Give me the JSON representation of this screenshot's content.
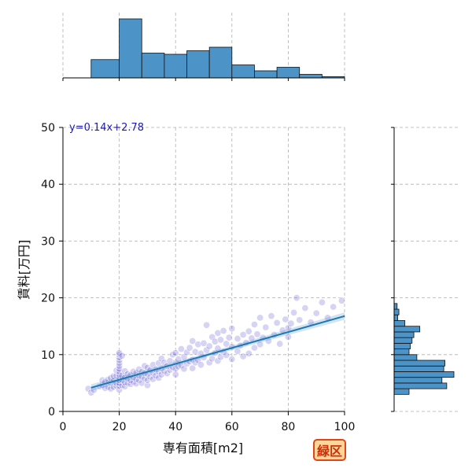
{
  "chart_data": {
    "type": "scatter",
    "xlabel": "専有面積[m2]",
    "ylabel": "賃料[万円]",
    "xlim": [
      0,
      100
    ],
    "ylim": [
      0,
      50
    ],
    "x_ticks": [
      "0",
      "20",
      "40",
      "60",
      "80",
      "100"
    ],
    "y_ticks": [
      "0",
      "10",
      "20",
      "30",
      "40",
      "50"
    ],
    "grid": true,
    "equation_label": "y=0.14x+2.78",
    "regression": {
      "slope": 0.14,
      "intercept": 2.78,
      "x_start": 10,
      "x_end": 100
    },
    "points_color": "#5a4fcf",
    "line_color": "#1f77b4",
    "hist_color": "#4c93c7",
    "top_histogram": {
      "bin_edges": [
        0,
        10,
        20,
        28,
        36,
        44,
        52,
        60,
        68,
        76,
        84,
        92,
        100
      ],
      "relative_heights": [
        0,
        0.31,
        1.0,
        0.42,
        0.4,
        0.46,
        0.52,
        0.22,
        0.12,
        0.18,
        0.06,
        0.02
      ]
    },
    "right_histogram": {
      "bin_edges_y": [
        3,
        4,
        5,
        6,
        7,
        8,
        9,
        10,
        11,
        12,
        13,
        14,
        15,
        16,
        17,
        18,
        19,
        20
      ],
      "relative_counts": [
        0.25,
        0.88,
        0.8,
        1.0,
        0.83,
        0.85,
        0.38,
        0.25,
        0.27,
        0.3,
        0.33,
        0.43,
        0.18,
        0.06,
        0.08,
        0.05,
        0
      ]
    },
    "points": [
      [
        9,
        4
      ],
      [
        10,
        3.3
      ],
      [
        11,
        3.8
      ],
      [
        13,
        4.4
      ],
      [
        14,
        4.6
      ],
      [
        14,
        5.5
      ],
      [
        15,
        4.1
      ],
      [
        15,
        5.2
      ],
      [
        16,
        4.3
      ],
      [
        16,
        5.6
      ],
      [
        17,
        4.0
      ],
      [
        17,
        5.0
      ],
      [
        17,
        5.9
      ],
      [
        18,
        4.3
      ],
      [
        18,
        5.4
      ],
      [
        18,
        6.2
      ],
      [
        19,
        4.5
      ],
      [
        19,
        5.0
      ],
      [
        19,
        6.3
      ],
      [
        19,
        7.2
      ],
      [
        20,
        3.8
      ],
      [
        20,
        4.5
      ],
      [
        20,
        5.0
      ],
      [
        20,
        5.5
      ],
      [
        20,
        6.0
      ],
      [
        20,
        6.5
      ],
      [
        20,
        7.0
      ],
      [
        20,
        7.5
      ],
      [
        20,
        8.0
      ],
      [
        20,
        8.5
      ],
      [
        20,
        9.0
      ],
      [
        20,
        9.5
      ],
      [
        20,
        10.0
      ],
      [
        20,
        10.3
      ],
      [
        21,
        4.6
      ],
      [
        21,
        5.5
      ],
      [
        21,
        6.3
      ],
      [
        21,
        9.8
      ],
      [
        22,
        4.4
      ],
      [
        22,
        5.1
      ],
      [
        22,
        6.0
      ],
      [
        22,
        7.1
      ],
      [
        23,
        5.0
      ],
      [
        23,
        5.8
      ],
      [
        23,
        6.6
      ],
      [
        24,
        4.8
      ],
      [
        24,
        5.5
      ],
      [
        24,
        6.4
      ],
      [
        25,
        5.2
      ],
      [
        25,
        6.0
      ],
      [
        25,
        7.0
      ],
      [
        26,
        4.9
      ],
      [
        26,
        5.7
      ],
      [
        26,
        6.8
      ],
      [
        27,
        5.5
      ],
      [
        27,
        6.3
      ],
      [
        27,
        7.4
      ],
      [
        28,
        5.0
      ],
      [
        28,
        6.1
      ],
      [
        28,
        7.0
      ],
      [
        29,
        5.8
      ],
      [
        29,
        6.7
      ],
      [
        29,
        8.0
      ],
      [
        30,
        4.6
      ],
      [
        30,
        5.5
      ],
      [
        30,
        6.6
      ],
      [
        30,
        7.7
      ],
      [
        31,
        6.1
      ],
      [
        31,
        7.3
      ],
      [
        32,
        5.7
      ],
      [
        32,
        6.8
      ],
      [
        32,
        8.2
      ],
      [
        33,
        6.3
      ],
      [
        33,
        7.4
      ],
      [
        34,
        5.9
      ],
      [
        34,
        7.0
      ],
      [
        34,
        8.5
      ],
      [
        35,
        6.5
      ],
      [
        35,
        7.6
      ],
      [
        35,
        9.3
      ],
      [
        36,
        7.1
      ],
      [
        36,
        8.6
      ],
      [
        37,
        6.7
      ],
      [
        37,
        8.0
      ],
      [
        38,
        7.3
      ],
      [
        38,
        8.9
      ],
      [
        39,
        7.8
      ],
      [
        39,
        10.0
      ],
      [
        40,
        6.5
      ],
      [
        40,
        7.5
      ],
      [
        40,
        8.6
      ],
      [
        40,
        10.3
      ],
      [
        41,
        7.9
      ],
      [
        41,
        9.2
      ],
      [
        42,
        8.1
      ],
      [
        42,
        11.0
      ],
      [
        43,
        7.5
      ],
      [
        43,
        9.6
      ],
      [
        44,
        8.4
      ],
      [
        44,
        10.4
      ],
      [
        45,
        8.8
      ],
      [
        45,
        11.2
      ],
      [
        46,
        7.6
      ],
      [
        46,
        9.1
      ],
      [
        46,
        12.4
      ],
      [
        47,
        8.6
      ],
      [
        47,
        10.5
      ],
      [
        48,
        9.0
      ],
      [
        48,
        11.8
      ],
      [
        49,
        8.2
      ],
      [
        49,
        10.2
      ],
      [
        50,
        9.5
      ],
      [
        50,
        12.0
      ],
      [
        51,
        15.2
      ],
      [
        51,
        10.8
      ],
      [
        52,
        8.6
      ],
      [
        52,
        11.5
      ],
      [
        53,
        9.3
      ],
      [
        53,
        13.1
      ],
      [
        54,
        10.3
      ],
      [
        54,
        12.3
      ],
      [
        55,
        8.9
      ],
      [
        55,
        11.1
      ],
      [
        55,
        13.8
      ],
      [
        56,
        9.6
      ],
      [
        56,
        12.6
      ],
      [
        57,
        10.5
      ],
      [
        57,
        14.2
      ],
      [
        58,
        9.9
      ],
      [
        58,
        11.9
      ],
      [
        59,
        13.0
      ],
      [
        60,
        9.2
      ],
      [
        60,
        11.4
      ],
      [
        60,
        14.6
      ],
      [
        62,
        10.6
      ],
      [
        62,
        12.8
      ],
      [
        63,
        11.6
      ],
      [
        64,
        9.7
      ],
      [
        64,
        13.5
      ],
      [
        65,
        12.1
      ],
      [
        66,
        10.2
      ],
      [
        66,
        14.1
      ],
      [
        67,
        12.9
      ],
      [
        68,
        11.2
      ],
      [
        68,
        15.3
      ],
      [
        69,
        13.6
      ],
      [
        70,
        11.8
      ],
      [
        70,
        16.5
      ],
      [
        71,
        13.0
      ],
      [
        72,
        14.8
      ],
      [
        73,
        12.4
      ],
      [
        74,
        16.8
      ],
      [
        75,
        13.5
      ],
      [
        76,
        15.6
      ],
      [
        77,
        11.9
      ],
      [
        78,
        14.3
      ],
      [
        79,
        16.2
      ],
      [
        80,
        13.1
      ],
      [
        80,
        14.7
      ],
      [
        81,
        15.5
      ],
      [
        82,
        17.4
      ],
      [
        83,
        20.0
      ],
      [
        84,
        16.1
      ],
      [
        86,
        18.2
      ],
      [
        88,
        15.7
      ],
      [
        90,
        17.3
      ],
      [
        92,
        19.2
      ],
      [
        94,
        16.5
      ],
      [
        96,
        18.4
      ],
      [
        99,
        19.5
      ]
    ]
  },
  "badge": {
    "text": "緑区",
    "border_color": "#e0461a",
    "bg_color": "#ffd59a",
    "text_color": "#c8300a"
  }
}
